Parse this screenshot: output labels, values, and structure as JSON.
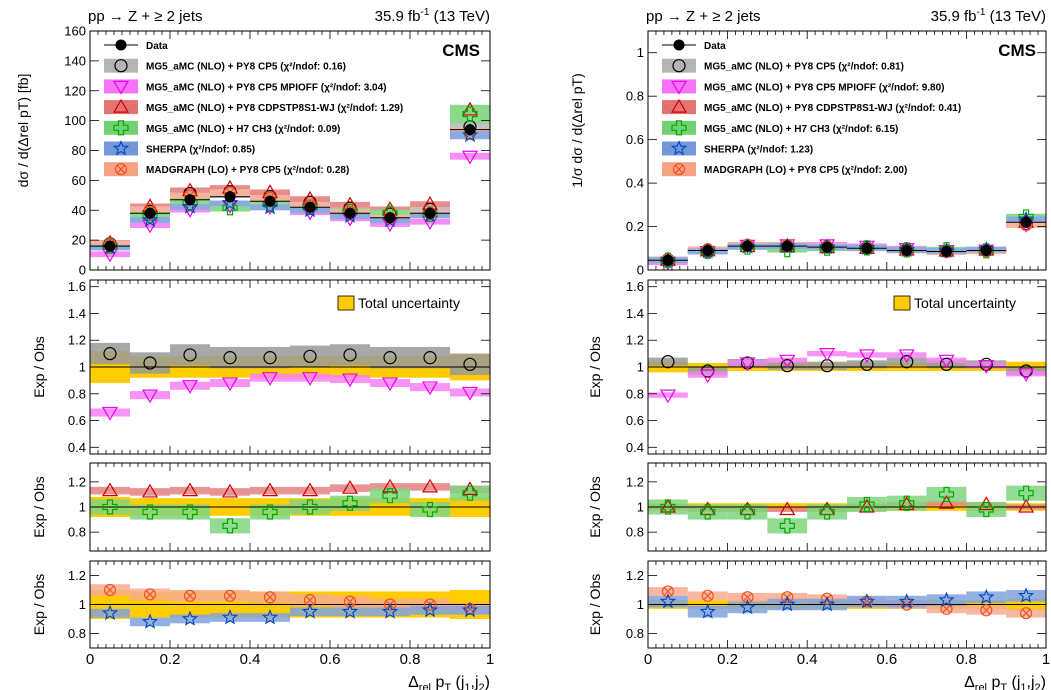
{
  "chart_data": {
    "type": "scatter",
    "common": {
      "process": "pp → Z + ≥ 2 jets",
      "lumi": "35.9 fb",
      "lumi_sup": "-1",
      "energy": "(13 TeV)",
      "experiment": "CMS",
      "x_values": [
        0.05,
        0.15,
        0.25,
        0.35,
        0.45,
        0.55,
        0.65,
        0.75,
        0.85,
        0.95
      ],
      "xlim": [
        0,
        1
      ],
      "x_ticks": [
        "0",
        "0.2",
        "0.4",
        "0.6",
        "0.8",
        "1"
      ],
      "x_label": "Δrel pT (j1,j2)",
      "ratio_ylabel": "Exp / Obs",
      "total_uncertainty_label": "Total uncertainty",
      "colors": {
        "data": "#000000",
        "total_unc": "#ffcc00",
        "mg5_py8": "#777777",
        "mpioff": "#ee00ee",
        "cdp": "#cc0000",
        "h7": "#00aa00",
        "sherpa": "#0044bb",
        "madgraph": "#ee5522"
      }
    },
    "panels": [
      {
        "id": "left",
        "main": {
          "ylabel": "dσ / d(Δrel pT) [fb]",
          "ylim": [
            0,
            160
          ],
          "yticks": [
            0,
            20,
            40,
            60,
            80,
            100,
            120,
            140,
            160
          ],
          "data": [
            16,
            38,
            47,
            49,
            46,
            42,
            38,
            35,
            38,
            94
          ],
          "legend": [
            {
              "key": "data",
              "label": "Data"
            },
            {
              "key": "mg5_py8",
              "label": "MG5_aMC (NLO) + PY8 CP5 (χ²/ndof: 0.16)"
            },
            {
              "key": "mpioff",
              "label": "MG5_aMC (NLO) + PY8 CP5 MPIOFF (χ²/ndof: 3.04)"
            },
            {
              "key": "cdp",
              "label": "MG5_aMC (NLO) + PY8 CDPSTP8S1-WJ (χ²/ndof: 1.29)"
            },
            {
              "key": "h7",
              "label": "MG5_aMC (NLO) + H7 CH3 (χ²/ndof: 0.09)"
            },
            {
              "key": "sherpa",
              "label": "SHERPA (χ²/ndof: 0.85)"
            },
            {
              "key": "madgraph",
              "label": "MADGRAPH (LO) + PY8 CP5 (χ²/ndof: 0.28)"
            }
          ]
        },
        "ratio1": {
          "ylim": [
            0.35,
            1.65
          ],
          "yticks": [
            "0.4",
            "0.6",
            "0.8",
            "1",
            "1.2",
            "1.4",
            "1.6"
          ],
          "total_unc": [
            0.12,
            0.08,
            0.08,
            0.08,
            0.08,
            0.08,
            0.08,
            0.08,
            0.08,
            0.1
          ],
          "series": [
            {
              "key": "mg5_py8",
              "marker": "circle",
              "values": [
                1.1,
                1.03,
                1.09,
                1.07,
                1.07,
                1.08,
                1.09,
                1.07,
                1.07,
                1.02
              ],
              "band": 0.08
            },
            {
              "key": "mpioff",
              "marker": "tri_down",
              "values": [
                0.66,
                0.79,
                0.86,
                0.88,
                0.92,
                0.92,
                0.91,
                0.88,
                0.85,
                0.81
              ],
              "band": 0.03
            }
          ]
        },
        "ratio2": {
          "ylim": [
            0.65,
            1.35
          ],
          "yticks": [
            "0.8",
            "1",
            "1.2"
          ],
          "total_unc": [
            0.08,
            0.07,
            0.07,
            0.07,
            0.07,
            0.07,
            0.07,
            0.07,
            0.07,
            0.08
          ],
          "series": [
            {
              "key": "cdp",
              "marker": "tri_up",
              "values": [
                1.13,
                1.12,
                1.13,
                1.12,
                1.13,
                1.13,
                1.15,
                1.16,
                1.16,
                1.14
              ],
              "band": 0.03
            },
            {
              "key": "h7",
              "marker": "cross",
              "values": [
                1.0,
                0.96,
                0.96,
                0.85,
                0.96,
                1.0,
                1.03,
                1.09,
                0.98,
                1.11
              ],
              "band": 0.06
            }
          ]
        },
        "ratio3": {
          "ylim": [
            0.7,
            1.3
          ],
          "yticks": [
            "0.8",
            "1",
            "1.2"
          ],
          "total_unc": [
            0.1,
            0.09,
            0.09,
            0.09,
            0.09,
            0.09,
            0.09,
            0.09,
            0.09,
            0.1
          ],
          "series": [
            {
              "key": "madgraph",
              "marker": "xcircle",
              "values": [
                1.1,
                1.07,
                1.06,
                1.06,
                1.05,
                1.03,
                1.02,
                1.0,
                1.0,
                0.97
              ],
              "band": 0.04
            },
            {
              "key": "sherpa",
              "marker": "star",
              "values": [
                0.94,
                0.88,
                0.9,
                0.91,
                0.91,
                0.95,
                0.95,
                0.95,
                0.96,
                0.96
              ],
              "band": 0.03
            }
          ]
        }
      },
      {
        "id": "right",
        "main": {
          "ylabel": "1/σ dσ / d(Δrel pT)",
          "ylim": [
            0,
            1.1
          ],
          "yticks": [
            0,
            0.2,
            0.4,
            0.6,
            0.8,
            1
          ],
          "data": [
            0.045,
            0.09,
            0.11,
            0.11,
            0.105,
            0.1,
            0.09,
            0.085,
            0.09,
            0.22
          ],
          "legend": [
            {
              "key": "data",
              "label": "Data"
            },
            {
              "key": "mg5_py8",
              "label": "MG5_aMC (NLO) + PY8 CP5 (χ²/ndof: 0.81)"
            },
            {
              "key": "mpioff",
              "label": "MG5_aMC (NLO) + PY8 CP5 MPIOFF (χ²/ndof: 9.80)"
            },
            {
              "key": "cdp",
              "label": "MG5_aMC (NLO) + PY8 CDPSTP8S1-WJ (χ²/ndof: 0.41)"
            },
            {
              "key": "h7",
              "label": "MG5_aMC (NLO) + H7 CH3 (χ²/ndof: 6.15)"
            },
            {
              "key": "sherpa",
              "label": "SHERPA (χ²/ndof: 1.23)"
            },
            {
              "key": "madgraph",
              "label": "MADGRAPH (LO) + PY8 CP5 (χ²/ndof: 2.00)"
            }
          ]
        },
        "ratio1": {
          "ylim": [
            0.35,
            1.65
          ],
          "yticks": [
            "0.4",
            "0.6",
            "0.8",
            "1",
            "1.2",
            "1.4",
            "1.6"
          ],
          "total_unc": [
            0.04,
            0.03,
            0.03,
            0.03,
            0.03,
            0.03,
            0.03,
            0.03,
            0.03,
            0.04
          ],
          "series": [
            {
              "key": "mg5_py8",
              "marker": "circle",
              "values": [
                1.04,
                0.97,
                1.03,
                1.01,
                1.01,
                1.02,
                1.04,
                1.02,
                1.02,
                0.97
              ],
              "band": 0.03
            },
            {
              "key": "mpioff",
              "marker": "tri_down",
              "values": [
                0.79,
                0.94,
                1.03,
                1.05,
                1.1,
                1.09,
                1.09,
                1.05,
                1.01,
                0.95
              ],
              "band": 0.02
            }
          ]
        },
        "ratio2": {
          "ylim": [
            0.65,
            1.35
          ],
          "yticks": [
            "0.8",
            "1",
            "1.2"
          ],
          "total_unc": [
            0.03,
            0.03,
            0.03,
            0.03,
            0.03,
            0.03,
            0.03,
            0.03,
            0.03,
            0.03
          ],
          "series": [
            {
              "key": "cdp",
              "marker": "tri_up",
              "values": [
                1.0,
                0.98,
                0.98,
                0.98,
                0.98,
                1.0,
                1.02,
                1.03,
                1.02,
                1.0
              ],
              "band": 0.02
            },
            {
              "key": "h7",
              "marker": "cross",
              "values": [
                1.0,
                0.96,
                0.96,
                0.85,
                0.96,
                1.02,
                1.03,
                1.1,
                0.98,
                1.11
              ],
              "band": 0.06
            }
          ]
        },
        "ratio3": {
          "ylim": [
            0.7,
            1.3
          ],
          "yticks": [
            "0.8",
            "1",
            "1.2"
          ],
          "total_unc": [
            0.03,
            0.03,
            0.03,
            0.03,
            0.03,
            0.03,
            0.03,
            0.03,
            0.03,
            0.04
          ],
          "series": [
            {
              "key": "madgraph",
              "marker": "xcircle",
              "values": [
                1.09,
                1.06,
                1.05,
                1.05,
                1.04,
                1.02,
                1.0,
                0.97,
                0.96,
                0.94
              ],
              "band": 0.03
            },
            {
              "key": "sherpa",
              "marker": "star",
              "values": [
                1.02,
                0.95,
                0.98,
                1.0,
                1.0,
                1.02,
                1.02,
                1.03,
                1.05,
                1.06
              ],
              "band": 0.04
            }
          ]
        }
      }
    ]
  }
}
